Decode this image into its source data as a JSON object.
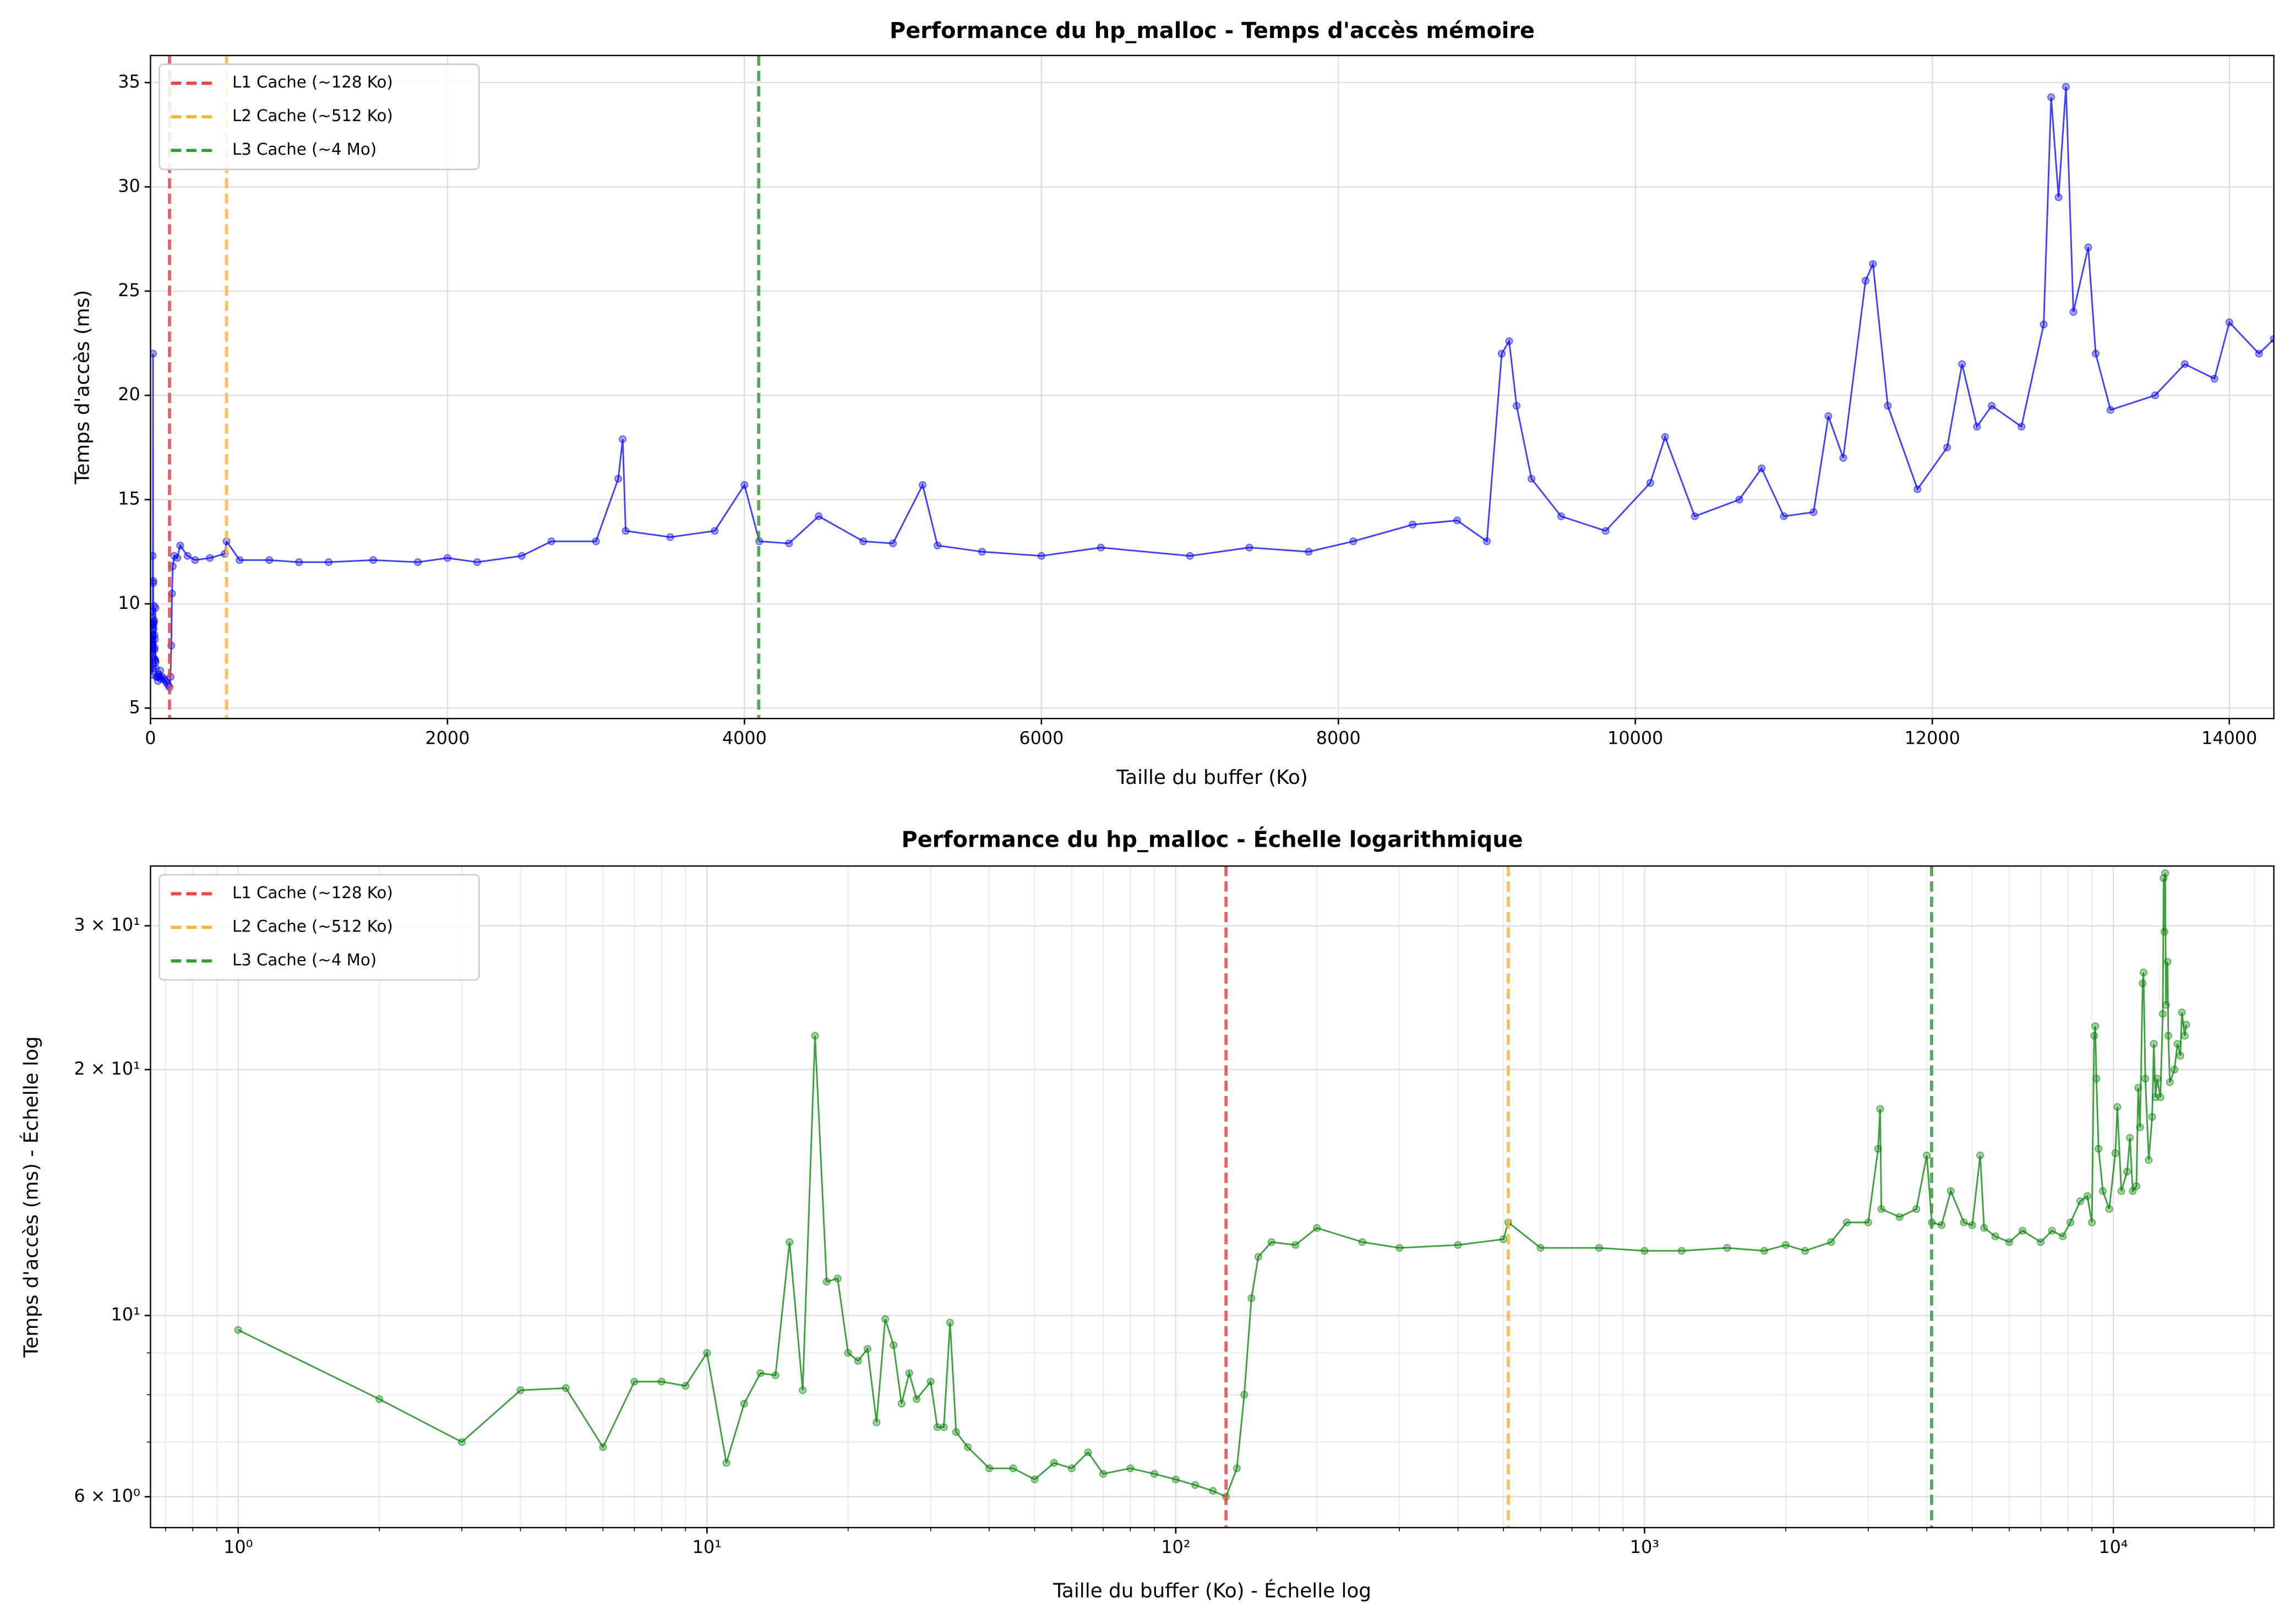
{
  "chart_data": [
    {
      "type": "line",
      "title": "Performance du hp_malloc - Temps d'accès mémoire",
      "xlabel": "Taille du buffer (Ko)",
      "ylabel": "Temps d'accès (ms)",
      "xlim": [
        0,
        14300
      ],
      "ylim": [
        4.5,
        36.3
      ],
      "xticks": [
        0,
        2000,
        4000,
        6000,
        8000,
        10000,
        12000,
        14000
      ],
      "yticks": [
        5,
        10,
        15,
        20,
        25,
        30,
        35
      ],
      "grid": true,
      "legend": "upper left",
      "xscale": "linear",
      "yscale": "linear",
      "vlines": [
        {
          "name": "L1 Cache (~128 Ko)",
          "x": 128,
          "color": "#ee4444"
        },
        {
          "name": "L2 Cache (~512 Ko)",
          "x": 512,
          "color": "#ffb733"
        },
        {
          "name": "L3 Cache (~4 Mo)",
          "x": 4096,
          "color": "#3a9a3a"
        }
      ],
      "series": [
        {
          "color": "#0000ff",
          "x": [
            1,
            2,
            3,
            4,
            5,
            6,
            7,
            8,
            9,
            10,
            11,
            12,
            13,
            14,
            15,
            16,
            17,
            18,
            19,
            20,
            21,
            22,
            23,
            24,
            25,
            26,
            27,
            28,
            30,
            31,
            32,
            33,
            34,
            36,
            40,
            45,
            50,
            55,
            60,
            65,
            70,
            80,
            90,
            100,
            110,
            120,
            128,
            135,
            140,
            145,
            150,
            160,
            180,
            200,
            250,
            300,
            400,
            500,
            512,
            600,
            800,
            1000,
            1200,
            1500,
            1800,
            2000,
            2200,
            2500,
            2700,
            3000,
            3150,
            3180,
            3200,
            3500,
            3800,
            4000,
            4100,
            4300,
            4500,
            4800,
            5000,
            5200,
            5300,
            5600,
            6000,
            6400,
            7000,
            7400,
            7800,
            8100,
            8500,
            8800,
            9000,
            9100,
            9150,
            9200,
            9300,
            9500,
            9800,
            10100,
            10200,
            10400,
            10700,
            10850,
            11000,
            11200,
            11300,
            11400,
            11550,
            11600,
            11700,
            11900,
            12100,
            12200,
            12300,
            12400,
            12600,
            12750,
            12800,
            12850,
            12900,
            12950,
            13050,
            13100,
            13200,
            13500,
            13700,
            13900,
            14000,
            14200,
            14300
          ],
          "values": [
            9.6,
            7.9,
            7.0,
            8.1,
            8.15,
            6.9,
            8.3,
            8.3,
            8.2,
            9.0,
            6.6,
            7.8,
            8.5,
            8.45,
            12.3,
            8.1,
            22.0,
            11.0,
            11.1,
            9.0,
            8.8,
            9.1,
            7.4,
            9.9,
            9.2,
            7.8,
            8.5,
            7.9,
            8.3,
            7.3,
            7.3,
            9.8,
            7.2,
            6.9,
            6.5,
            6.5,
            6.3,
            6.6,
            6.5,
            6.8,
            6.4,
            6.5,
            6.4,
            6.3,
            6.2,
            6.1,
            6.0,
            6.5,
            8.0,
            10.5,
            11.8,
            12.3,
            12.2,
            12.8,
            12.3,
            12.1,
            12.2,
            12.4,
            13.0,
            12.1,
            12.1,
            12.0,
            12.0,
            12.1,
            12.0,
            12.2,
            12.0,
            12.3,
            13.0,
            13.0,
            16.0,
            17.9,
            13.5,
            13.2,
            13.5,
            15.7,
            13.0,
            12.9,
            14.2,
            13.0,
            12.9,
            15.7,
            12.8,
            12.5,
            12.3,
            12.7,
            12.3,
            12.7,
            12.5,
            13.0,
            13.8,
            14.0,
            13.0,
            22.0,
            22.6,
            19.5,
            16.0,
            14.2,
            13.5,
            15.8,
            18.0,
            14.2,
            15.0,
            16.5,
            14.2,
            14.4,
            19.0,
            17.0,
            25.5,
            26.3,
            19.5,
            15.5,
            17.5,
            21.5,
            18.5,
            19.5,
            18.5,
            23.4,
            34.3,
            29.5,
            34.8,
            24.0,
            27.1,
            22.0,
            19.3,
            20.0,
            21.5,
            20.8,
            23.5,
            22.0,
            22.7
          ]
        }
      ]
    },
    {
      "type": "line",
      "title": "Performance du hp_malloc - Échelle logarithmique",
      "xlabel": "Taille du buffer (Ko) - Échelle log",
      "ylabel": "Temps d'accès (ms) - Échelle log",
      "xlim": [
        0.65,
        22000
      ],
      "ylim": [
        5.5,
        35.5
      ],
      "xticks": [
        {
          "value": 1,
          "label": "10⁰"
        },
        {
          "value": 10,
          "label": "10¹"
        },
        {
          "value": 100,
          "label": "10²"
        },
        {
          "value": 1000,
          "label": "10³"
        },
        {
          "value": 10000,
          "label": "10⁴"
        }
      ],
      "yticks": [
        {
          "value": 6,
          "label": "6 × 10⁰"
        },
        {
          "value": 10,
          "label": "10¹"
        },
        {
          "value": 20,
          "label": "2 × 10¹"
        },
        {
          "value": 30,
          "label": "3 × 10¹"
        }
      ],
      "grid": true,
      "legend": "upper left",
      "xscale": "log",
      "yscale": "log",
      "vlines": [
        {
          "name": "L1 Cache (~128 Ko)",
          "x": 128,
          "color": "#ee4444"
        },
        {
          "name": "L2 Cache (~512 Ko)",
          "x": 512,
          "color": "#ffb733"
        },
        {
          "name": "L3 Cache (~4 Mo)",
          "x": 4096,
          "color": "#3a9a3a"
        }
      ],
      "series": [
        {
          "color": "#008000",
          "x": [
            1,
            2,
            3,
            4,
            5,
            6,
            7,
            8,
            9,
            10,
            11,
            12,
            13,
            14,
            15,
            16,
            17,
            18,
            19,
            20,
            21,
            22,
            23,
            24,
            25,
            26,
            27,
            28,
            30,
            31,
            32,
            33,
            34,
            36,
            40,
            45,
            50,
            55,
            60,
            65,
            70,
            80,
            90,
            100,
            110,
            120,
            128,
            135,
            140,
            145,
            150,
            160,
            180,
            200,
            250,
            300,
            400,
            500,
            512,
            600,
            800,
            1000,
            1200,
            1500,
            1800,
            2000,
            2200,
            2500,
            2700,
            3000,
            3150,
            3180,
            3200,
            3500,
            3800,
            4000,
            4100,
            4300,
            4500,
            4800,
            5000,
            5200,
            5300,
            5600,
            6000,
            6400,
            7000,
            7400,
            7800,
            8100,
            8500,
            8800,
            9000,
            9100,
            9150,
            9200,
            9300,
            9500,
            9800,
            10100,
            10200,
            10400,
            10700,
            10850,
            11000,
            11200,
            11300,
            11400,
            11550,
            11600,
            11700,
            11900,
            12100,
            12200,
            12300,
            12400,
            12600,
            12750,
            12800,
            12850,
            12900,
            12950,
            13050,
            13100,
            13200,
            13500,
            13700,
            13900,
            14000,
            14200,
            14300
          ],
          "values": [
            9.6,
            7.9,
            7.0,
            8.1,
            8.15,
            6.9,
            8.3,
            8.3,
            8.2,
            9.0,
            6.6,
            7.8,
            8.5,
            8.45,
            12.3,
            8.1,
            22.0,
            11.0,
            11.1,
            9.0,
            8.8,
            9.1,
            7.4,
            9.9,
            9.2,
            7.8,
            8.5,
            7.9,
            8.3,
            7.3,
            7.3,
            9.8,
            7.2,
            6.9,
            6.5,
            6.5,
            6.3,
            6.6,
            6.5,
            6.8,
            6.4,
            6.5,
            6.4,
            6.3,
            6.2,
            6.1,
            6.0,
            6.5,
            8.0,
            10.5,
            11.8,
            12.3,
            12.2,
            12.8,
            12.3,
            12.1,
            12.2,
            12.4,
            13.0,
            12.1,
            12.1,
            12.0,
            12.0,
            12.1,
            12.0,
            12.2,
            12.0,
            12.3,
            13.0,
            13.0,
            16.0,
            17.9,
            13.5,
            13.2,
            13.5,
            15.7,
            13.0,
            12.9,
            14.2,
            13.0,
            12.9,
            15.7,
            12.8,
            12.5,
            12.3,
            12.7,
            12.3,
            12.7,
            12.5,
            13.0,
            13.8,
            14.0,
            13.0,
            22.0,
            22.6,
            19.5,
            16.0,
            14.2,
            13.5,
            15.8,
            18.0,
            14.2,
            15.0,
            16.5,
            14.2,
            14.4,
            19.0,
            17.0,
            25.5,
            26.3,
            19.5,
            15.5,
            17.5,
            21.5,
            18.5,
            19.5,
            18.5,
            23.4,
            34.3,
            29.5,
            34.8,
            24.0,
            27.1,
            22.0,
            19.3,
            20.0,
            21.5,
            20.8,
            23.5,
            22.0,
            22.7
          ]
        }
      ]
    }
  ]
}
